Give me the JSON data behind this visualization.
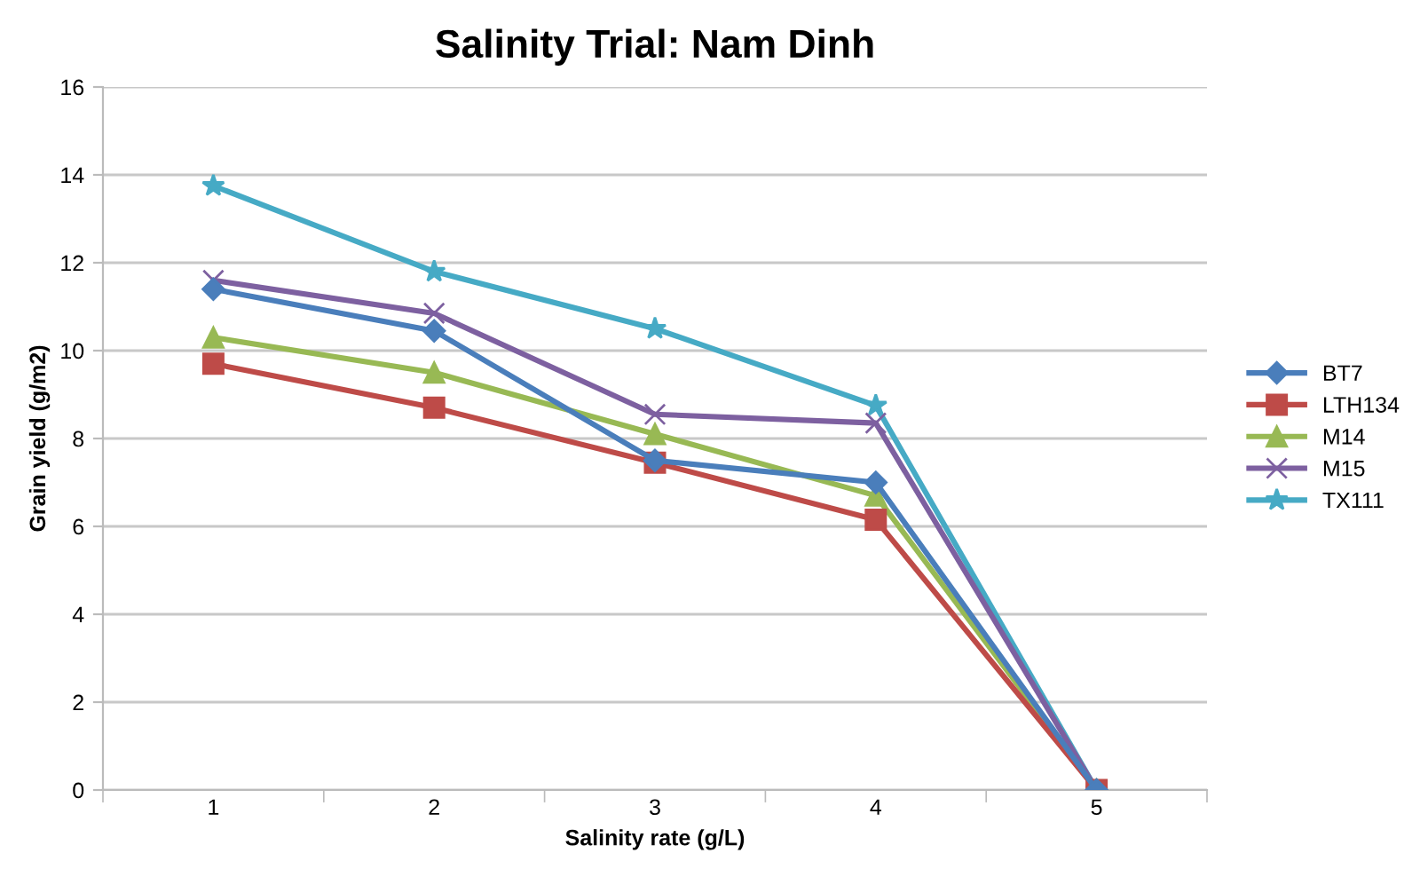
{
  "chart_data": {
    "type": "line",
    "title": "Salinity Trial: Nam Dinh",
    "xlabel": "Salinity rate (g/L)",
    "ylabel": "Grain yield (g/m2)",
    "categories": [
      "1",
      "2",
      "3",
      "4",
      "5"
    ],
    "series": [
      {
        "name": "BT7",
        "color": "#4a7ebb",
        "marker": "diamond",
        "values": [
          11.4,
          10.45,
          7.5,
          7.0,
          0
        ]
      },
      {
        "name": "LTH134",
        "color": "#be4b48",
        "marker": "square",
        "values": [
          9.7,
          8.7,
          7.45,
          6.15,
          0
        ]
      },
      {
        "name": "M14",
        "color": "#98b954",
        "marker": "triangle",
        "values": [
          10.3,
          9.5,
          8.1,
          6.7,
          0
        ]
      },
      {
        "name": "M15",
        "color": "#7d60a0",
        "marker": "cross",
        "values": [
          11.6,
          10.85,
          8.55,
          8.35,
          0
        ]
      },
      {
        "name": "TX111",
        "color": "#46aac5",
        "marker": "star",
        "values": [
          13.75,
          11.8,
          10.5,
          8.75,
          0
        ]
      }
    ],
    "ylim": [
      0,
      16
    ],
    "yticks": [
      0,
      2,
      4,
      6,
      8,
      10,
      12,
      14,
      16
    ],
    "grid": "y",
    "legend": "right",
    "line_style": "solid"
  }
}
